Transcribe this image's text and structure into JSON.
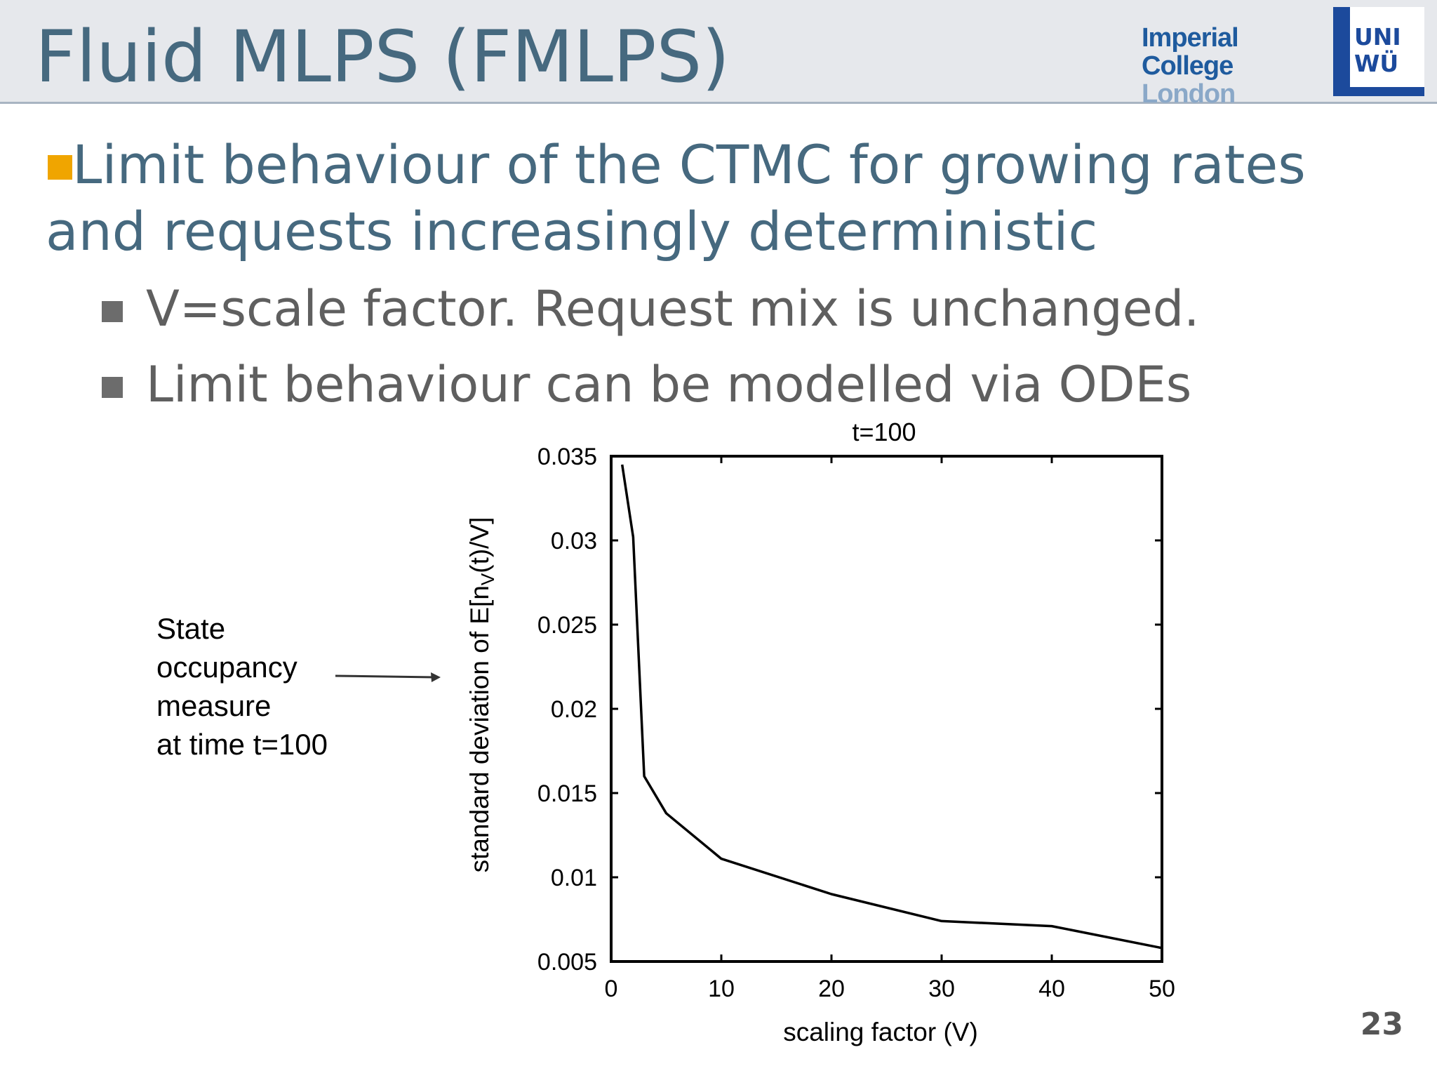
{
  "header": {
    "title": "Fluid MLPS (FMLPS)",
    "logo_imperial_line1": "Imperial College",
    "logo_imperial_line2": "London",
    "logo_uni_line1": "UNI",
    "logo_uni_line2": "WÜ"
  },
  "bullets": {
    "main_line1": "Limit behaviour of the CTMC for growing rates",
    "main_line2": "and requests increasingly deterministic",
    "sub": [
      "V=scale factor. Request mix is unchanged.",
      "Limit behaviour can be modelled via ODEs"
    ]
  },
  "annotation": {
    "lines": [
      "State",
      "occupancy",
      "measure",
      "at time t=100"
    ]
  },
  "page_number": "23",
  "colors": {
    "title": "#46697f",
    "bullet_orange": "#f0a500",
    "header_bg": "#e6e8ec"
  },
  "chart_data": {
    "type": "line",
    "title": "t=100",
    "xlabel": "scaling factor (V)",
    "ylabel": "standard deviation of E[n_V(t)/V]",
    "ylabel_prefix": "standard deviation of E[n",
    "ylabel_sub": "V",
    "ylabel_suffix": "(t)/V]",
    "xlim": [
      0,
      50
    ],
    "ylim": [
      0.005,
      0.035
    ],
    "x_ticks": [
      0,
      10,
      20,
      30,
      40,
      50
    ],
    "x_tick_labels": [
      "0",
      "10",
      "20",
      "30",
      "40",
      "50"
    ],
    "y_ticks": [
      0.005,
      0.01,
      0.015,
      0.02,
      0.025,
      0.03,
      0.035
    ],
    "y_tick_labels": [
      "0.005",
      "0.01",
      "0.015",
      "0.02",
      "0.025",
      "0.03",
      "0.035"
    ],
    "series": [
      {
        "name": "std dev",
        "x": [
          1,
          2,
          3,
          5,
          10,
          20,
          30,
          40,
          50
        ],
        "y": [
          0.0345,
          0.0302,
          0.016,
          0.0138,
          0.0111,
          0.009,
          0.0074,
          0.0071,
          0.0058
        ]
      }
    ]
  }
}
